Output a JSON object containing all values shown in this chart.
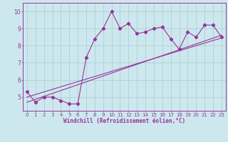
{
  "xlabel": "Windchill (Refroidissement éolien,°C)",
  "bg_color": "#cce8ee",
  "line_color": "#993399",
  "x_data": [
    0,
    1,
    2,
    3,
    4,
    5,
    6,
    7,
    8,
    9,
    10,
    11,
    12,
    13,
    14,
    15,
    16,
    17,
    18,
    19,
    20,
    21,
    22,
    23
  ],
  "y_main": [
    5.3,
    4.7,
    5.0,
    5.0,
    4.8,
    4.6,
    4.6,
    7.3,
    8.4,
    9.0,
    10.0,
    9.0,
    9.3,
    8.7,
    8.8,
    9.0,
    9.1,
    8.4,
    7.8,
    8.8,
    8.5,
    9.2,
    9.2,
    8.5
  ],
  "y_lin1": [
    5.0,
    5.15,
    5.3,
    5.45,
    5.6,
    5.75,
    5.9,
    6.05,
    6.2,
    6.35,
    6.5,
    6.65,
    6.8,
    6.95,
    7.1,
    7.25,
    7.4,
    7.55,
    7.7,
    7.85,
    8.0,
    8.15,
    8.3,
    8.45
  ],
  "y_lin2": [
    4.7,
    4.87,
    5.04,
    5.21,
    5.38,
    5.55,
    5.72,
    5.89,
    6.06,
    6.23,
    6.4,
    6.57,
    6.74,
    6.91,
    7.08,
    7.25,
    7.42,
    7.59,
    7.76,
    7.93,
    8.1,
    8.27,
    8.44,
    8.61
  ],
  "xlim": [
    -0.5,
    23.5
  ],
  "ylim": [
    4.2,
    10.5
  ],
  "yticks": [
    5,
    6,
    7,
    8,
    9,
    10
  ],
  "grid_color": "#aacccc",
  "marker": "D",
  "markersize": 2.2,
  "linewidth": 0.8,
  "tick_fontsize": 5.0,
  "xlabel_fontsize": 5.5
}
